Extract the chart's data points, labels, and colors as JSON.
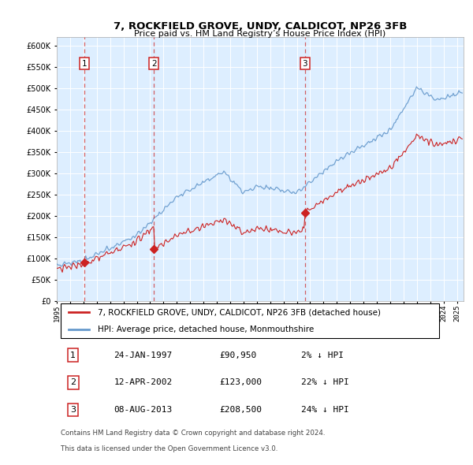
{
  "title": "7, ROCKFIELD GROVE, UNDY, CALDICOT, NP26 3FB",
  "subtitle": "Price paid vs. HM Land Registry’s House Price Index (HPI)",
  "ylabel_ticks": [
    0,
    50000,
    100000,
    150000,
    200000,
    250000,
    300000,
    350000,
    400000,
    450000,
    500000,
    550000,
    600000
  ],
  "ylim": [
    0,
    620000
  ],
  "xlim_start": 1995.0,
  "xlim_end": 2025.5,
  "sale_dates": [
    1997.07,
    2002.28,
    2013.61
  ],
  "sale_prices": [
    90950,
    123000,
    208500
  ],
  "sale_labels": [
    "1",
    "2",
    "3"
  ],
  "legend_line1": "7, ROCKFIELD GROVE, UNDY, CALDICOT, NP26 3FB (detached house)",
  "legend_line2": "HPI: Average price, detached house, Monmouthshire",
  "footnote1": "Contains HM Land Registry data © Crown copyright and database right 2024.",
  "footnote2": "This data is licensed under the Open Government Licence v3.0.",
  "red_color": "#cc2222",
  "blue_color": "#6699cc",
  "bg_color": "#ddeeff",
  "grid_color": "#ffffff",
  "marker_box_color": "#cc2222",
  "xtick_years": [
    1995,
    1996,
    1997,
    1998,
    1999,
    2000,
    2001,
    2002,
    2003,
    2004,
    2005,
    2006,
    2007,
    2008,
    2009,
    2010,
    2011,
    2012,
    2013,
    2014,
    2015,
    2016,
    2017,
    2018,
    2019,
    2020,
    2021,
    2022,
    2023,
    2024,
    2025
  ],
  "table_rows": [
    [
      "1",
      "24-JAN-1997",
      "£90,950",
      "2% ↓ HPI"
    ],
    [
      "2",
      "12-APR-2002",
      "£123,000",
      "22% ↓ HPI"
    ],
    [
      "3",
      "08-AUG-2013",
      "£208,500",
      "24% ↓ HPI"
    ]
  ]
}
